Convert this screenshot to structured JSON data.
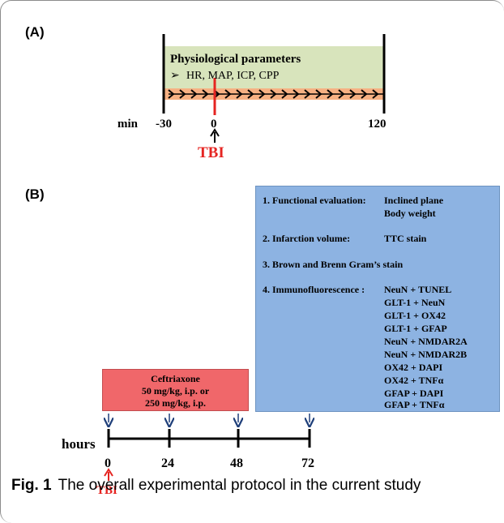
{
  "panel_a": {
    "label": "(A)",
    "box_title": "Physiological parameters",
    "box_bullet": "➢",
    "box_items": "HR, MAP, ICP, CPP",
    "axis_label": "min",
    "ticks": [
      "-30",
      "0",
      "120"
    ],
    "event_label": "TBI",
    "colors": {
      "box": "#d8e4bc",
      "band": "#f6b183",
      "event": "#e52421"
    }
  },
  "panel_b": {
    "label": "(B)",
    "evaluations": [
      {
        "title": "1. Functional evaluation:",
        "items": [
          "Inclined plane",
          "Body weight"
        ]
      },
      {
        "title": "2. Infarction volume:",
        "items": [
          "TTC stain"
        ]
      },
      {
        "title": "3. Brown and Brenn Gram’s stain",
        "items": []
      },
      {
        "title": "4. Immunofluorescence :",
        "items": [
          "NeuN + TUNEL",
          "GLT-1 + NeuN",
          "GLT-1 + OX42",
          "GLT-1 + GFAP",
          "NeuN + NMDAR2A",
          "NeuN + NMDAR2B",
          "OX42 + DAPI",
          "OX42 + TNFα",
          "GFAP + DAPI",
          "GFAP + TNFα"
        ]
      }
    ],
    "treatment": {
      "name": "Ceftriaxone",
      "dose1": "50 mg/kg, i.p.  or",
      "dose2": "250 mg/kg, i.p."
    },
    "axis_label": "hours",
    "ticks": [
      "0",
      "24",
      "48",
      "72"
    ],
    "event_label": "TBI",
    "colors": {
      "eval_box": "#8db3e2",
      "treatment_box": "#f0676a",
      "arrow": "#1f3f7a",
      "event": "#e52421"
    }
  },
  "caption": {
    "fig": "Fig. 1",
    "text": "The overall experimental protocol in the current study"
  }
}
